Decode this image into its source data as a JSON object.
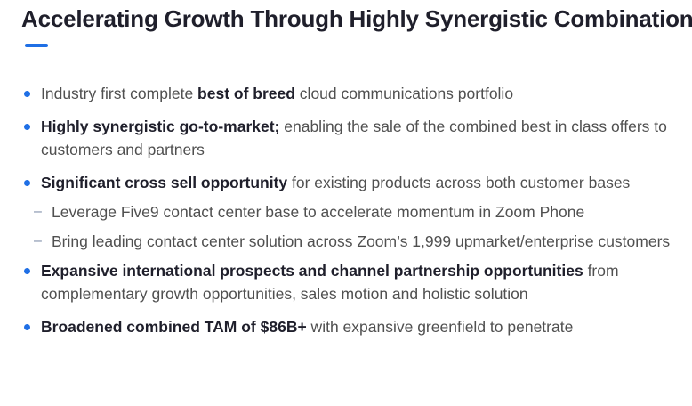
{
  "title": "Accelerating Growth Through Highly Synergistic Combination",
  "colors": {
    "accent": "#1f6fe5",
    "title": "#1f1f2b",
    "body": "#505050"
  },
  "bullets": [
    {
      "before": "Industry first complete ",
      "bold": "best of breed",
      "after": " cloud communications portfolio"
    },
    {
      "bold": "Highly synergistic go-to-market;",
      "after": " enabling the sale of the combined best in class offers to customers and partners"
    },
    {
      "bold": "Significant cross sell opportunity",
      "after": " for existing products across both customer bases"
    },
    {
      "text": "Leverage Five9 contact center base to accelerate momentum in Zoom Phone"
    },
    {
      "text": "Bring leading contact center solution across Zoom’s 1,999 upmarket/enterprise customers"
    },
    {
      "bold": "Expansive international prospects and channel partnership opportunities",
      "after": " from complementary growth opportunities, sales motion and holistic solution"
    },
    {
      "bold": "Broadened combined TAM of $86B+",
      "after": " with expansive greenfield to penetrate"
    }
  ]
}
